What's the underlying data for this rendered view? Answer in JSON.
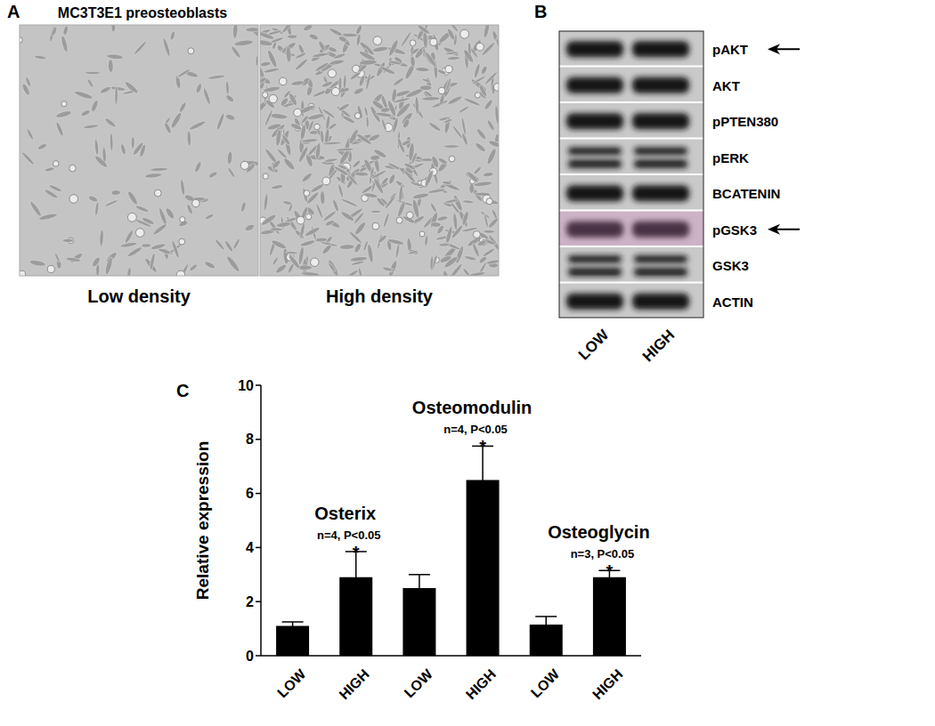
{
  "panel_labels": [
    "A",
    "B",
    "C"
  ],
  "panel_a": {
    "title": "MC3T3E1 preosteoblasts",
    "images": [
      "Low density",
      "High density"
    ]
  },
  "panel_b": {
    "bands": [
      "pAKT",
      "AKT",
      "pPTEN380",
      "pERK",
      "BCATENIN",
      "pGSK3",
      "GSK3",
      "ACTIN"
    ],
    "arrows": [
      "pAKT",
      "pGSK3"
    ],
    "lanes": [
      "LOW",
      "HIGH"
    ]
  },
  "chart_data": {
    "type": "bar",
    "categories": [
      "LOW",
      "HIGH",
      "LOW",
      "HIGH",
      "LOW",
      "HIGH"
    ],
    "values": [
      1.1,
      2.9,
      2.5,
      6.5,
      1.15,
      2.9
    ],
    "errors": [
      0.15,
      0.95,
      0.5,
      1.25,
      0.3,
      0.25
    ],
    "significance": [
      null,
      "*",
      null,
      "*",
      null,
      "*"
    ],
    "groups": [
      {
        "name": "Osterix",
        "stats": "n=4, P<0.05"
      },
      {
        "name": "Osteomodulin",
        "stats": "n=4, P<0.05"
      },
      {
        "name": "Osteoglycin",
        "stats": "n=3, P<0.05"
      }
    ],
    "y_label": "Relative expression",
    "color": "#000000",
    "ylim": [
      0,
      10
    ],
    "yticks": [
      0,
      2,
      4,
      6,
      8,
      10
    ]
  }
}
